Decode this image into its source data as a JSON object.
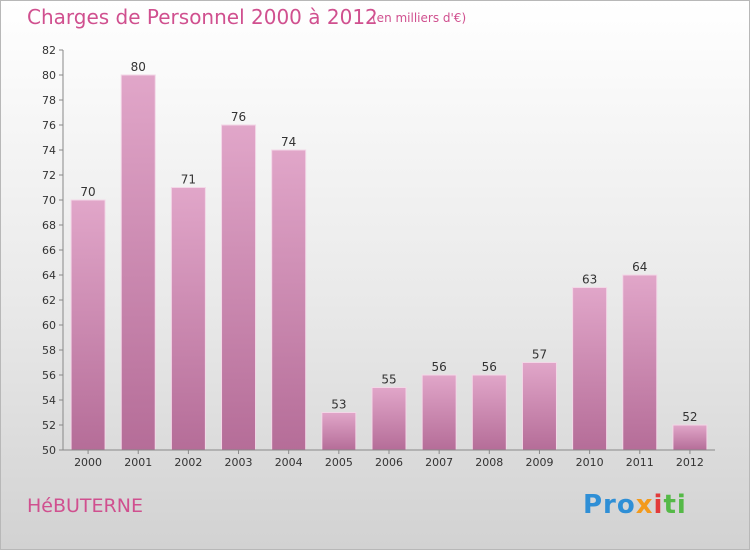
{
  "title": "Charges de Personnel 2000 à 2012",
  "subtitle": "(en milliers d'€)",
  "commune": "HéBUTERNE",
  "logo": {
    "p1": "Pro",
    "p2": "x",
    "p3": "i",
    "p4": "ti"
  },
  "colors": {
    "bar": "#d998be",
    "bar_dark": "#b86a98",
    "title": "#d0508f"
  },
  "chart_data": {
    "type": "bar",
    "title": "Charges de Personnel 2000 à 2012",
    "subtitle": "(en milliers d'€)",
    "categories": [
      "2000",
      "2001",
      "2002",
      "2003",
      "2004",
      "2005",
      "2006",
      "2007",
      "2008",
      "2009",
      "2010",
      "2011",
      "2012"
    ],
    "values": [
      70,
      80,
      71,
      76,
      74,
      53,
      55,
      56,
      56,
      57,
      63,
      64,
      52
    ],
    "ylim": [
      50,
      82
    ],
    "yticks": [
      50,
      52,
      54,
      56,
      58,
      60,
      62,
      64,
      66,
      68,
      70,
      72,
      74,
      76,
      78,
      80,
      82
    ],
    "grid": false,
    "legend": "none"
  }
}
